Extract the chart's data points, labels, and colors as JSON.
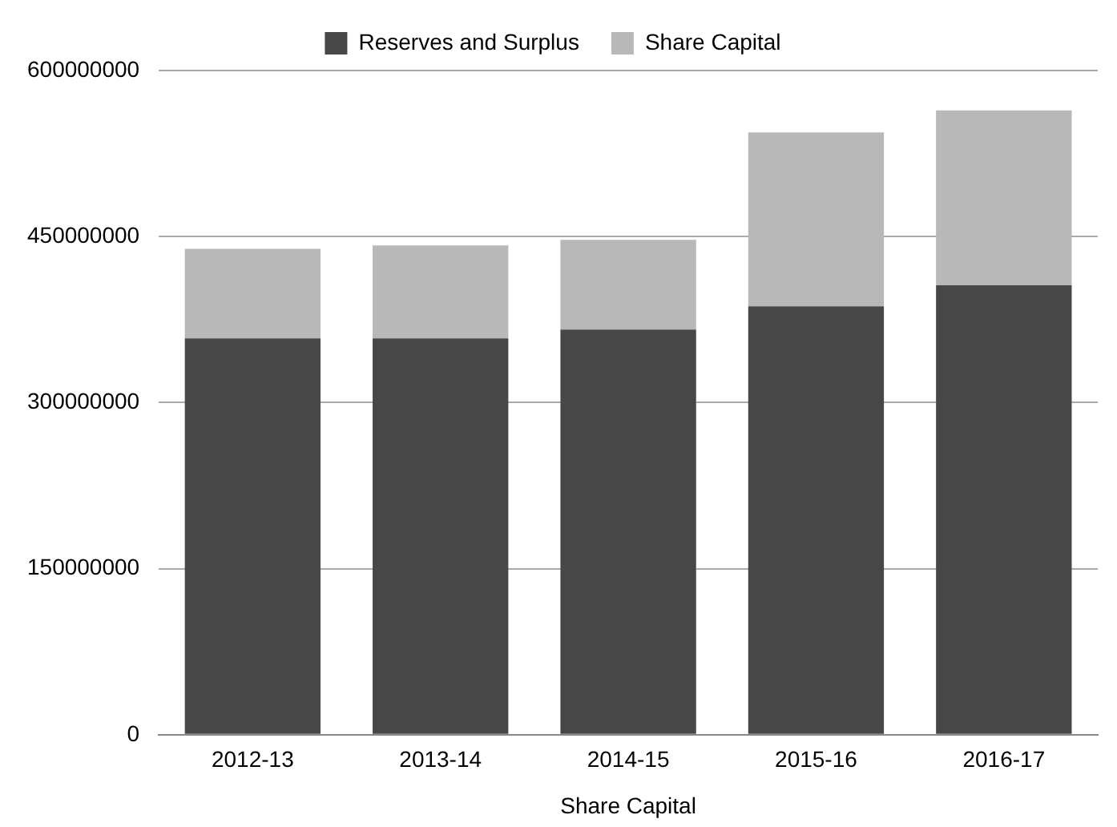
{
  "chart_data": {
    "type": "bar",
    "stacked": true,
    "xlabel": "Share Capital",
    "categories": [
      "2012-13",
      "2013-14",
      "2014-15",
      "2015-16",
      "2016-17"
    ],
    "series": [
      {
        "name": "Reserves and Surplus",
        "color": "#474747",
        "values": [
          358000000,
          358000000,
          366000000,
          387000000,
          406000000
        ]
      },
      {
        "name": "Share Capital",
        "color": "#b8b8b8",
        "values": [
          81000000,
          84000000,
          81000000,
          157000000,
          158000000
        ]
      }
    ],
    "ylim": [
      0,
      600000000
    ],
    "yticks": [
      0,
      150000000,
      300000000,
      450000000,
      600000000
    ],
    "grid": "y",
    "legend": "top"
  }
}
